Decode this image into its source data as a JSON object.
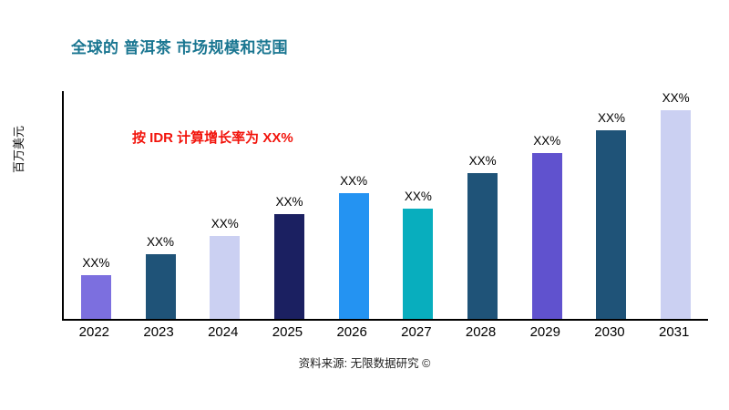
{
  "header": {
    "title": "全球的 普洱茶 市场规模和范围"
  },
  "annotation": {
    "growth_text": "按 IDR 计算增长率为 XX%",
    "color": "#f2140c"
  },
  "axes": {
    "y_label": "百万美元",
    "y_ticks": []
  },
  "footer": {
    "source_text": "资料来源: 无限数据研究 ©"
  },
  "chart_data": {
    "type": "bar",
    "title": "全球的 普洱茶 市场规模和范围",
    "xlabel": "",
    "ylabel": "百万美元",
    "categories": [
      "2022",
      "2023",
      "2024",
      "2025",
      "2026",
      "2027",
      "2028",
      "2029",
      "2030",
      "2031"
    ],
    "values": [
      48,
      71,
      91,
      115,
      138,
      121,
      160,
      182,
      207,
      231
    ],
    "value_labels": [
      "XX%",
      "XX%",
      "XX%",
      "XX%",
      "XX%",
      "XX%",
      "XX%",
      "XX%",
      "XX%",
      "XX%"
    ],
    "bar_colors": [
      "#7C6FDF",
      "#1F5378",
      "#CBD0F2",
      "#1B2061",
      "#2493F2",
      "#08AEBE",
      "#1F5378",
      "#6052CE",
      "#1F5378",
      "#CBD0F2"
    ],
    "ylim": [
      0,
      250
    ],
    "grid": false,
    "legend": false
  }
}
